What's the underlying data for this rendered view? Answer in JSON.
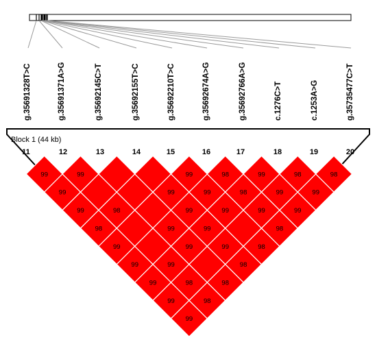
{
  "snp_labels": [
    "g.35691328T>C",
    "g.35691371A>G",
    "g.35692145C>T",
    "g.35692155T>C",
    "g.35692210T>C",
    "g.35692674A>G",
    "g.35692766A>G",
    "c.1276C>T",
    "c.1253A>G",
    "g.35735477C>T"
  ],
  "marker_numbers": [
    "11",
    "12",
    "13",
    "14",
    "15",
    "16",
    "17",
    "18",
    "19",
    "20"
  ],
  "block": {
    "title": "Block 1 (44 kb)"
  },
  "ld_rows": [
    [
      "99",
      "99",
      "",
      "",
      "99",
      "98",
      "99",
      "98",
      "98"
    ],
    [
      "99",
      "",
      "",
      "99",
      "99",
      "98",
      "99",
      "99"
    ],
    [
      "99",
      "98",
      "",
      "99",
      "99",
      "99",
      "99"
    ],
    [
      "98",
      "",
      "99",
      "99",
      "",
      "98"
    ],
    [
      "99",
      "",
      "99",
      "99",
      "98"
    ],
    [
      "99",
      "99",
      "",
      "98"
    ],
    [
      "99",
      "98",
      "98"
    ],
    [
      "99",
      "98"
    ],
    [
      "99"
    ]
  ],
  "colors": {
    "high_ld": "#ff0000",
    "cell_border": "#ffffff",
    "outline": "#000000",
    "tick_line": "#999999"
  }
}
